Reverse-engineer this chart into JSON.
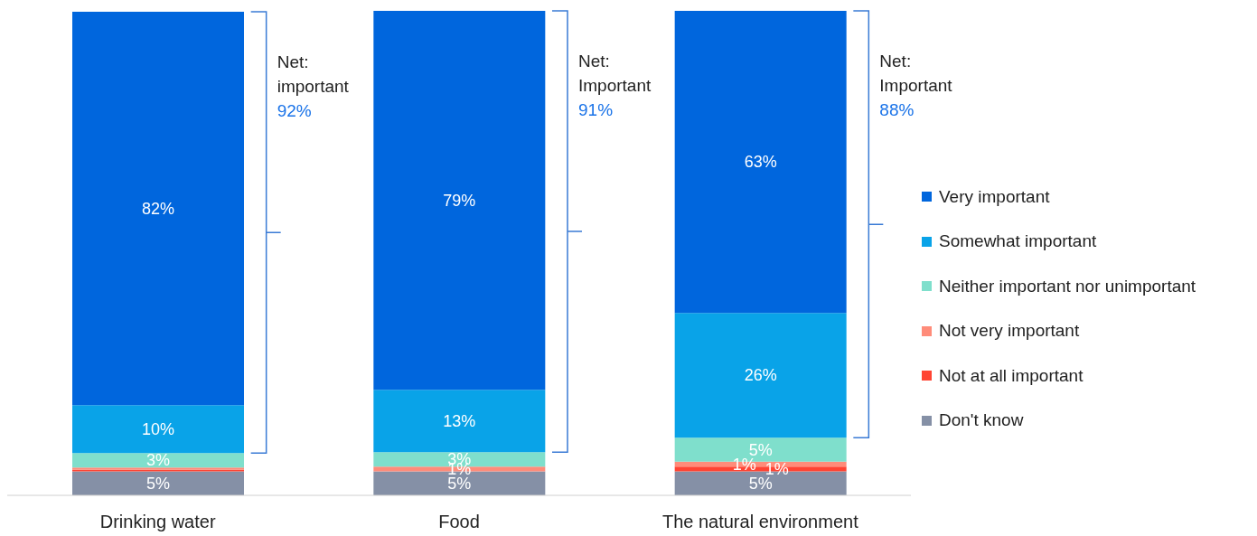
{
  "chart_data": {
    "type": "bar",
    "stacked": true,
    "categories": [
      "Drinking water",
      "Food",
      "The natural environment"
    ],
    "series": [
      {
        "name": "Don't know",
        "color": "#8590a6",
        "values": [
          5,
          5,
          5
        ],
        "value_labels": [
          "5%",
          "5%",
          "5%"
        ]
      },
      {
        "name": "Not at all important",
        "color": "#ff4433",
        "values": [
          0.3,
          0,
          1
        ],
        "value_labels": [
          null,
          null,
          "1%"
        ]
      },
      {
        "name": "Not very important",
        "color": "#ff8c7a",
        "values": [
          0.5,
          1,
          1
        ],
        "value_labels": [
          null,
          "1%",
          "1%"
        ]
      },
      {
        "name": "Neither important nor unimportant",
        "color": "#7fdfcc",
        "values": [
          3,
          3,
          5
        ],
        "value_labels": [
          "3%",
          "3%",
          "5%"
        ]
      },
      {
        "name": "Somewhat important",
        "color": "#09a3e8",
        "values": [
          10,
          13,
          26
        ],
        "value_labels": [
          "10%",
          "13%",
          "26%"
        ]
      },
      {
        "name": "Very important",
        "color": "#0066dd",
        "values": [
          82,
          79,
          63
        ],
        "value_labels": [
          "82%",
          "79%",
          "63%"
        ]
      }
    ],
    "annotations": [
      "Net: important 92%",
      "Net: Important 91%",
      "Net: Important 88%"
    ],
    "legend": "right"
  }
}
